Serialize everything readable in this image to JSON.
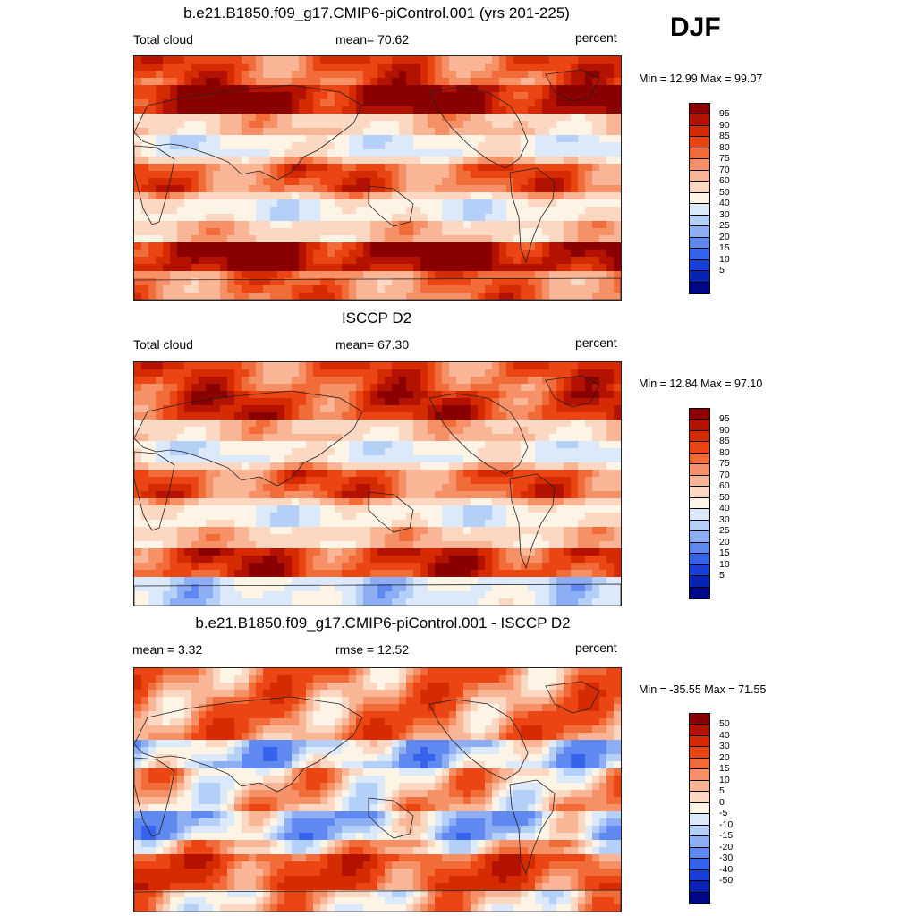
{
  "season": "DJF",
  "panels": [
    {
      "title": "b.e21.B1850.f09_g17.CMIP6-piControl.001 (yrs 201-225)",
      "left_label": "Total cloud",
      "center_label": "mean=  70.62",
      "right_label": "percent",
      "minmax": "Min =  12.99 Max =  99.07",
      "colorbar_ticks": [
        "95",
        "90",
        "85",
        "80",
        "75",
        "70",
        "60",
        "50",
        "40",
        "30",
        "25",
        "20",
        "15",
        "10",
        "5"
      ]
    },
    {
      "title": "ISCCP D2",
      "left_label": "Total cloud",
      "center_label": "mean=  67.30",
      "right_label": "percent",
      "minmax": "Min =  12.84 Max =  97.10",
      "colorbar_ticks": [
        "95",
        "90",
        "85",
        "80",
        "75",
        "70",
        "60",
        "50",
        "40",
        "30",
        "25",
        "20",
        "15",
        "10",
        "5"
      ]
    },
    {
      "title": "b.e21.B1850.f09_g17.CMIP6-piControl.001 - ISCCP D2",
      "left_label": "mean =   3.32",
      "center_label": "rmse =  12.52",
      "right_label": "percent",
      "minmax": "Min = -35.55 Max =  71.55",
      "colorbar_ticks": [
        "50",
        "40",
        "30",
        "20",
        "15",
        "10",
        "5",
        "0",
        "-5",
        "-10",
        "-15",
        "-20",
        "-30",
        "-40",
        "-50"
      ]
    }
  ],
  "colors": {
    "palette_top_to_bottom": [
      "#8a0000",
      "#b31200",
      "#d62a00",
      "#ea4512",
      "#f26c3a",
      "#f69066",
      "#f9b596",
      "#fcd7c1",
      "#fdf4e6",
      "#dbe9fb",
      "#b4cff8",
      "#8daef4",
      "#5f88f0",
      "#3563ea",
      "#173fd8",
      "#0823b4",
      "#00088a"
    ]
  }
}
